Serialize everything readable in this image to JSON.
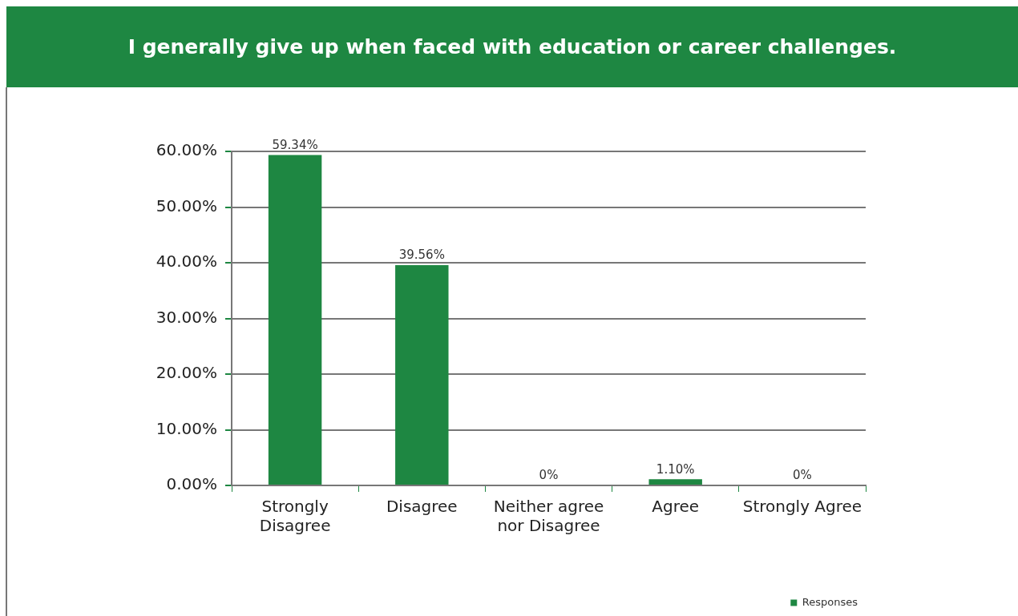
{
  "chart_data": {
    "type": "bar",
    "title": "I generally give up when faced with education or career challenges.",
    "categories": [
      "Strongly Disagree",
      "Disagree",
      "Neither agree nor Disagree",
      "Agree",
      "Strongly Agree"
    ],
    "series": [
      {
        "name": "Responses",
        "color": "#1e8742",
        "values": [
          59.34,
          39.56,
          0,
          1.1,
          0
        ],
        "value_labels": [
          "59.34%",
          "39.56%",
          "0%",
          "1.10%",
          "0%"
        ]
      }
    ],
    "ylim": [
      0,
      60
    ],
    "yticks": [
      {
        "value": 0,
        "label": "0.00%"
      },
      {
        "value": 10,
        "label": "10.00%"
      },
      {
        "value": 20,
        "label": "20.00%"
      },
      {
        "value": 30,
        "label": "30.00%"
      },
      {
        "value": 40,
        "label": "40.00%"
      },
      {
        "value": 50,
        "label": "50.00%"
      },
      {
        "value": 60,
        "label": "60.00%"
      }
    ],
    "grid": "y",
    "legend": "bottom right"
  }
}
